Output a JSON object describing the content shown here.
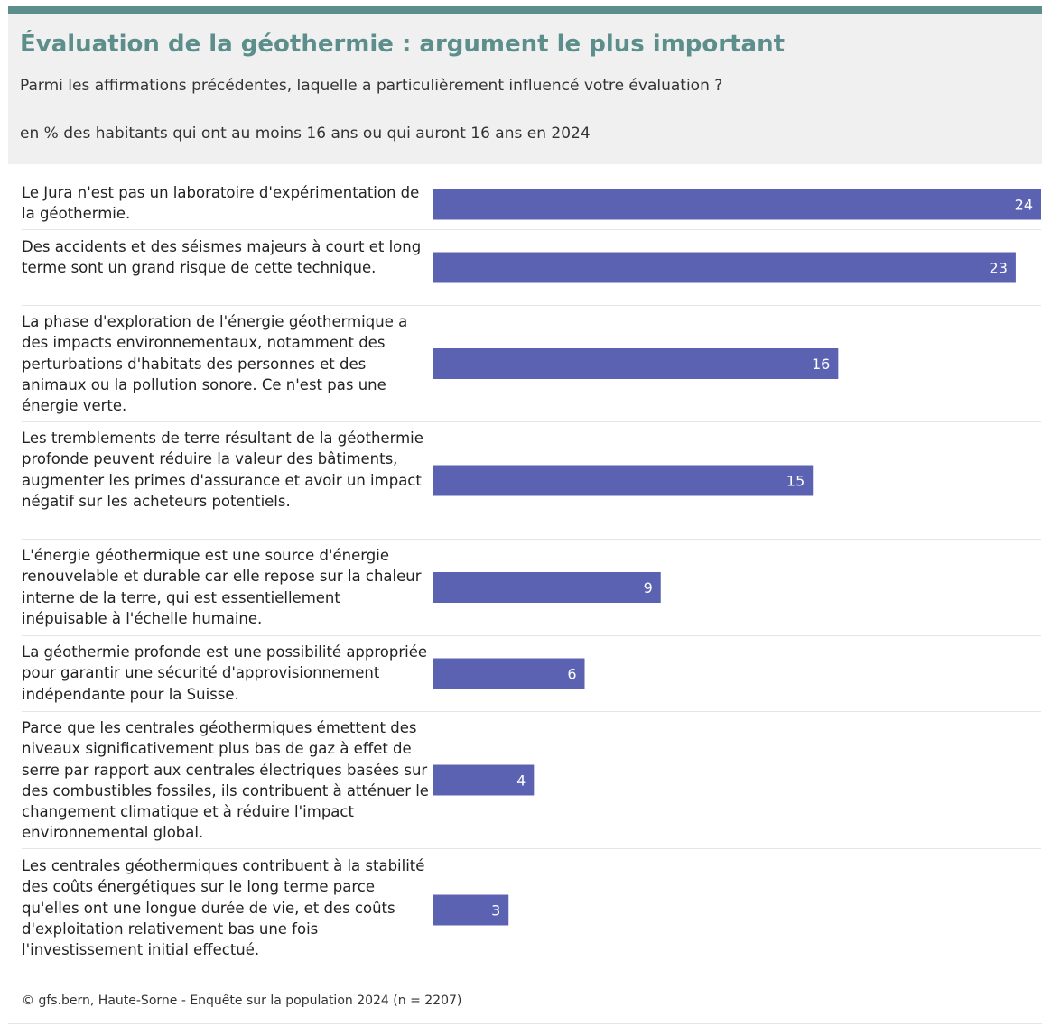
{
  "header": {
    "title": "Évaluation de la géothermie : argument le plus important",
    "subtitle": "Parmi les affirmations précédentes, laquelle a particulièrement influencé votre évaluation ?",
    "note": "en % des habitants qui ont au moins 16 ans ou qui auront 16 ans en 2024"
  },
  "chart_data": {
    "type": "bar",
    "orientation": "horizontal",
    "title": "Évaluation de la géothermie : argument le plus important",
    "categories": [
      "Le Jura n'est pas un laboratoire d'expérimentation de la géothermie.",
      "Des accidents et des séismes majeurs à court et long terme sont un grand risque de cette technique.",
      "La phase d'exploration de l'énergie géothermique a des impacts environnementaux, notamment des perturbations d'habitats des personnes et des animaux ou la pollution sonore. Ce n'est pas une énergie verte.",
      "Les tremblements de terre résultant de la géothermie profonde peuvent réduire la valeur des bâtiments, augmenter les primes d'assurance et avoir un impact négatif sur les acheteurs potentiels.",
      "L'énergie géothermique est une source d'énergie renouvelable et durable car elle repose sur la chaleur interne de la terre, qui est essentiellement inépuisable à l'échelle humaine.",
      "La géothermie profonde est une possibilité appropriée pour garantir une sécurité d'approvisionnement indépendante pour la Suisse.",
      "Parce que les centrales géothermiques émettent des niveaux significativement plus bas de gaz à effet de serre par rapport aux centrales électriques basées sur des combustibles fossiles, ils contribuent à atténuer le changement climatique et à réduire l'impact environnemental global.",
      "Les centrales géothermiques contribuent à la stabilité des coûts énergétiques sur le long terme parce qu'elles ont une longue durée de vie, et des coûts d'exploitation relativement bas une fois l'investissement initial effectué."
    ],
    "values": [
      24,
      23,
      16,
      15,
      9,
      6,
      4,
      3
    ],
    "xlim": [
      0,
      24
    ],
    "grid": false,
    "bar_color": "#5b62b2",
    "value_label_color": "#ffffff"
  },
  "footer": {
    "source": "© gfs.bern, Haute-Sorne - Enquête sur la population 2024 (n = 2207)"
  },
  "colors": {
    "accent": "#5c8f8c",
    "header_bg": "#f0f0f0",
    "separator": "#e6e6e6"
  }
}
